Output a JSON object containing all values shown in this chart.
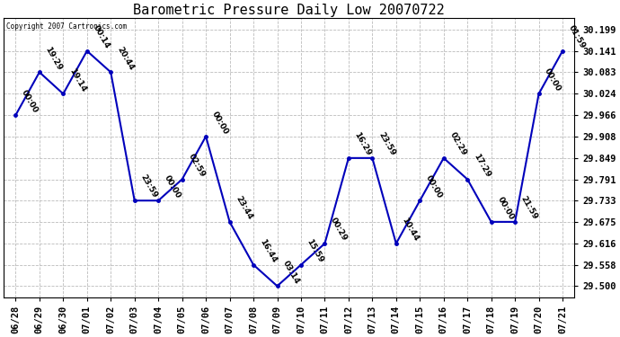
{
  "title": "Barometric Pressure Daily Low 20070722",
  "copyright": "Copyright 2007 Cartronics.com",
  "x_labels": [
    "06/28",
    "06/29",
    "06/30",
    "07/01",
    "07/02",
    "07/03",
    "07/04",
    "07/05",
    "07/06",
    "07/07",
    "07/08",
    "07/09",
    "07/10",
    "07/11",
    "07/12",
    "07/13",
    "07/14",
    "07/15",
    "07/16",
    "07/17",
    "07/18",
    "07/19",
    "07/20",
    "07/21"
  ],
  "y_values": [
    29.966,
    30.083,
    30.024,
    30.141,
    30.083,
    29.733,
    29.733,
    29.791,
    29.908,
    29.675,
    29.558,
    29.5,
    29.558,
    29.616,
    29.849,
    29.849,
    29.616,
    29.733,
    29.849,
    29.791,
    29.675,
    29.675,
    30.024,
    30.141
  ],
  "time_labels": [
    "00:00",
    "19:29",
    "19:14",
    "00:14",
    "20:44",
    "23:59",
    "00:00",
    "02:59",
    "00:00",
    "23:44",
    "16:44",
    "03:14",
    "15:59",
    "00:29",
    "16:29",
    "23:59",
    "10:44",
    "00:00",
    "02:29",
    "17:29",
    "00:00",
    "21:59",
    "00:00",
    "01:59"
  ],
  "y_ticks": [
    29.5,
    29.558,
    29.616,
    29.675,
    29.733,
    29.791,
    29.849,
    29.908,
    29.966,
    30.024,
    30.083,
    30.141,
    30.199
  ],
  "line_color": "#0000bb",
  "marker_color": "#0000bb",
  "bg_color": "#ffffff",
  "grid_color": "#bbbbbb",
  "title_fontsize": 11,
  "tick_fontsize": 7.5,
  "annotation_fontsize": 6.5
}
